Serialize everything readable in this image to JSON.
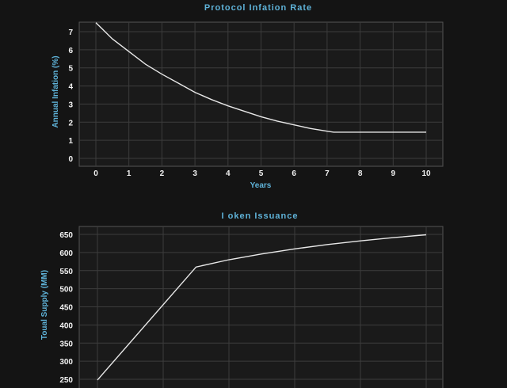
{
  "colors": {
    "background": "#141414",
    "text_accent": "#5fb3d9",
    "line": "#e8e8e8",
    "grid": "#3c3c3c"
  },
  "chart_data": [
    {
      "type": "line",
      "title": "Protocol Infation Rate",
      "xlabel": "Years",
      "ylabel": "Annual Infation (%)",
      "xlim": [
        0,
        10
      ],
      "ylim": [
        0,
        7
      ],
      "xticks": [
        0,
        1,
        2,
        3,
        4,
        5,
        6,
        7,
        8,
        9,
        10
      ],
      "yticks": [
        0,
        1,
        2,
        3,
        4,
        5,
        6,
        7
      ],
      "grid": true,
      "series": [
        {
          "x": [
            0,
            0.5,
            1,
            1.5,
            2,
            2.5,
            3,
            3.5,
            4,
            4.5,
            5,
            5.5,
            6,
            6.5,
            7,
            7.2,
            8,
            9,
            10
          ],
          "values": [
            7.5,
            6.6,
            5.9,
            5.2,
            4.65,
            4.15,
            3.65,
            3.25,
            2.9,
            2.6,
            2.3,
            2.05,
            1.85,
            1.65,
            1.5,
            1.45,
            1.45,
            1.45,
            1.45
          ]
        }
      ]
    },
    {
      "type": "line",
      "title": "I oken Issuance",
      "xlabel": "",
      "ylabel": "Toual Supply (MM)",
      "xlim": [
        0,
        10
      ],
      "ylim": [
        240,
        660
      ],
      "yticks": [
        250,
        300,
        350,
        400,
        450,
        500,
        550,
        600,
        650
      ],
      "grid": true,
      "series": [
        {
          "x": [
            0,
            3,
            4,
            5,
            6,
            7,
            8,
            9,
            10
          ],
          "values": [
            248,
            560,
            580,
            596,
            610,
            622,
            632,
            641,
            649
          ]
        }
      ]
    }
  ]
}
